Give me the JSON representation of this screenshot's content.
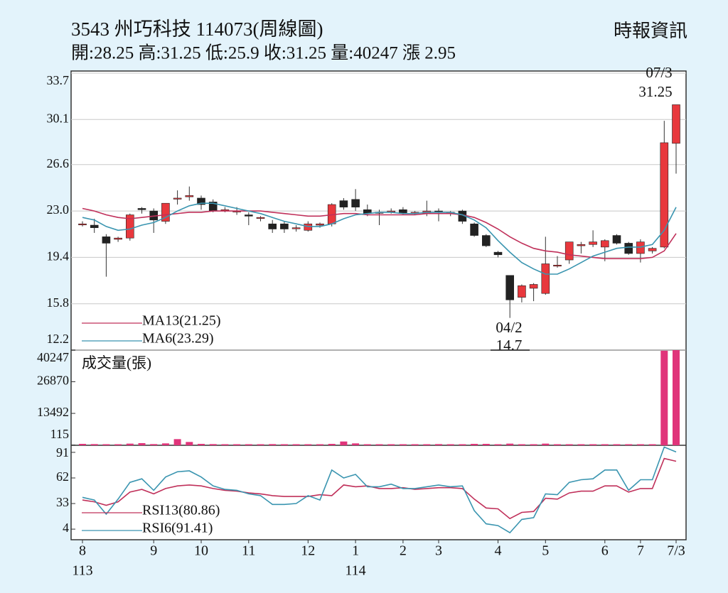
{
  "header": {
    "title": "3543  州巧科技 114073(周線圖)",
    "stats": "開:28.25 高:31.25 低:25.9 收:31.25 量:40247 漲 2.95",
    "source": "時報資訊"
  },
  "chart_data": [
    {
      "type": "candlestick",
      "ylim": [
        12.2,
        33.7
      ],
      "yticks": [
        12.2,
        15.8,
        19.4,
        {
          "value": 23,
          "label": "23.0"
        },
        26.6,
        30.1,
        33.7
      ],
      "grid": true,
      "up_color": "#e8383d",
      "down_color": "#222222",
      "annotations": [
        "07/3",
        "31.25",
        "04/2",
        "14.7"
      ],
      "ohlc": [
        [
          22.0,
          22.2,
          21.8,
          22.0
        ],
        [
          21.9,
          22.4,
          21.3,
          21.7
        ],
        [
          21.0,
          21.2,
          17.9,
          20.5
        ],
        [
          20.8,
          21.0,
          20.6,
          20.9
        ],
        [
          20.9,
          22.8,
          20.7,
          22.7
        ],
        [
          23.2,
          23.3,
          22.8,
          23.1
        ],
        [
          23.0,
          23.2,
          21.3,
          22.3
        ],
        [
          22.2,
          23.6,
          22.0,
          23.6
        ],
        [
          24.0,
          24.6,
          23.5,
          24.0
        ],
        [
          24.1,
          24.9,
          23.8,
          24.2
        ],
        [
          24.0,
          24.2,
          23.1,
          23.5
        ],
        [
          23.7,
          23.9,
          22.9,
          23.0
        ],
        [
          23.1,
          23.3,
          22.9,
          23.1
        ],
        [
          23.0,
          23.3,
          22.7,
          23.0
        ],
        [
          22.7,
          22.9,
          21.9,
          22.6
        ],
        [
          22.5,
          22.6,
          22.2,
          22.5
        ],
        [
          22.0,
          22.3,
          21.3,
          21.6
        ],
        [
          22.0,
          22.2,
          21.3,
          21.6
        ],
        [
          21.7,
          21.9,
          21.4,
          21.7
        ],
        [
          21.5,
          22.2,
          21.4,
          22.0
        ],
        [
          21.9,
          22.1,
          21.7,
          22.0
        ],
        [
          22.0,
          23.6,
          21.8,
          23.5
        ],
        [
          23.8,
          24.0,
          23.1,
          23.3
        ],
        [
          23.9,
          24.7,
          23.0,
          23.3
        ],
        [
          23.1,
          23.5,
          22.6,
          22.8
        ],
        [
          22.9,
          23.1,
          21.9,
          22.9
        ],
        [
          23.0,
          23.2,
          22.8,
          23.0
        ],
        [
          23.1,
          23.3,
          22.7,
          22.8
        ],
        [
          22.9,
          23.0,
          22.7,
          22.9
        ],
        [
          22.8,
          23.8,
          22.6,
          23.0
        ],
        [
          23.0,
          23.2,
          22.2,
          22.9
        ],
        [
          22.9,
          23.0,
          22.6,
          22.9
        ],
        [
          23.0,
          23.1,
          22.0,
          22.2
        ],
        [
          22.0,
          22.1,
          21.0,
          21.1
        ],
        [
          21.1,
          21.2,
          20.2,
          20.3
        ],
        [
          19.8,
          19.9,
          19.4,
          19.6
        ],
        [
          18.0,
          18.0,
          14.7,
          16.1
        ],
        [
          16.3,
          17.3,
          15.9,
          17.2
        ],
        [
          17.0,
          17.4,
          16.0,
          17.3
        ],
        [
          16.6,
          21.0,
          16.5,
          18.9
        ],
        [
          18.8,
          19.5,
          18.6,
          18.8
        ],
        [
          19.2,
          20.6,
          18.9,
          20.6
        ],
        [
          20.3,
          20.6,
          19.7,
          20.4
        ],
        [
          20.4,
          21.5,
          20.2,
          20.6
        ],
        [
          20.2,
          20.8,
          19.1,
          20.7
        ],
        [
          21.1,
          21.2,
          20.4,
          20.5
        ],
        [
          20.5,
          20.6,
          19.6,
          19.7
        ],
        [
          19.7,
          20.8,
          19.0,
          20.6
        ],
        [
          19.9,
          20.2,
          19.7,
          20.1
        ],
        [
          20.2,
          30.0,
          20.1,
          28.3
        ],
        [
          28.25,
          31.25,
          25.9,
          31.25
        ]
      ],
      "series": [
        {
          "name": "MA13(21.25)",
          "color": "#c0305a",
          "values": [
            23.2,
            23.0,
            22.7,
            22.5,
            22.4,
            22.5,
            22.6,
            22.7,
            22.8,
            22.9,
            22.9,
            23.0,
            23.0,
            23.0,
            23.0,
            23.0,
            22.9,
            22.8,
            22.7,
            22.6,
            22.6,
            22.7,
            22.8,
            22.8,
            22.7,
            22.7,
            22.7,
            22.7,
            22.7,
            22.8,
            22.8,
            22.8,
            22.7,
            22.5,
            22.1,
            21.6,
            21.0,
            20.5,
            20.1,
            19.9,
            19.8,
            19.6,
            19.5,
            19.4,
            19.3,
            19.3,
            19.3,
            19.3,
            19.4,
            19.9,
            21.25
          ]
        },
        {
          "name": "MA6(23.29)",
          "color": "#3a95b0",
          "values": [
            22.5,
            22.3,
            21.8,
            21.5,
            21.6,
            21.9,
            22.1,
            22.5,
            23.0,
            23.4,
            23.6,
            23.6,
            23.4,
            23.2,
            23.0,
            22.8,
            22.5,
            22.2,
            22.0,
            21.8,
            21.8,
            22.0,
            22.4,
            22.7,
            22.8,
            22.9,
            22.9,
            22.8,
            22.8,
            22.9,
            22.9,
            22.9,
            22.7,
            22.3,
            21.7,
            20.7,
            19.8,
            19.0,
            18.5,
            18.1,
            18.1,
            18.5,
            19.0,
            19.5,
            19.8,
            20.1,
            20.2,
            20.2,
            20.4,
            21.5,
            23.29
          ]
        }
      ]
    },
    {
      "type": "bar",
      "label": "成交量(張)",
      "ylim": [
        0,
        40247
      ],
      "yticks": [
        115,
        13492,
        26870,
        40247
      ],
      "color": "#e0347a",
      "values": [
        600,
        500,
        300,
        200,
        700,
        900,
        500,
        800,
        2600,
        1400,
        600,
        500,
        300,
        300,
        400,
        300,
        500,
        400,
        300,
        300,
        400,
        600,
        1600,
        800,
        400,
        300,
        300,
        300,
        300,
        300,
        500,
        300,
        400,
        600,
        600,
        300,
        700,
        400,
        300,
        700,
        300,
        400,
        300,
        300,
        400,
        300,
        300,
        300,
        300,
        40000,
        40247
      ]
    },
    {
      "type": "line",
      "ylim": [
        -8,
        99
      ],
      "yticks": [
        4,
        33,
        62,
        91
      ],
      "categories": [
        "8",
        null,
        null,
        null,
        null,
        null,
        "9",
        null,
        null,
        null,
        "10",
        null,
        null,
        null,
        "11",
        null,
        null,
        null,
        null,
        "12",
        null,
        null,
        null,
        "1",
        null,
        null,
        null,
        "2",
        null,
        null,
        "3",
        null,
        null,
        null,
        null,
        "4",
        null,
        null,
        null,
        "5",
        null,
        null,
        null,
        null,
        "6",
        null,
        null,
        "7",
        null,
        null,
        "7/3"
      ],
      "year_labels": [
        "113",
        "114"
      ],
      "series": [
        {
          "name": "RSI13(80.86)",
          "color": "#c0305a",
          "values": [
            37,
            35,
            31,
            35,
            46,
            49,
            44,
            50,
            53,
            54,
            53,
            50,
            48,
            47,
            45,
            44,
            42,
            41,
            41,
            41,
            43,
            42,
            54,
            52,
            53,
            50,
            50,
            51,
            49,
            50,
            51,
            51,
            50,
            38,
            28,
            27,
            16,
            23,
            24,
            39,
            38,
            45,
            47,
            47,
            53,
            53,
            46,
            50,
            50,
            84,
            80.86
          ]
        },
        {
          "name": "RSI6(91.41)",
          "color": "#3a95b0",
          "values": [
            40,
            37,
            21,
            38,
            57,
            61,
            48,
            63,
            69,
            70,
            63,
            53,
            49,
            48,
            44,
            42,
            32,
            32,
            33,
            42,
            37,
            71,
            62,
            66,
            52,
            52,
            55,
            50,
            50,
            52,
            54,
            52,
            53,
            25,
            10,
            8,
            0,
            15,
            17,
            44,
            43,
            57,
            60,
            61,
            71,
            71,
            48,
            60,
            60,
            97,
            91.41
          ]
        }
      ]
    }
  ]
}
